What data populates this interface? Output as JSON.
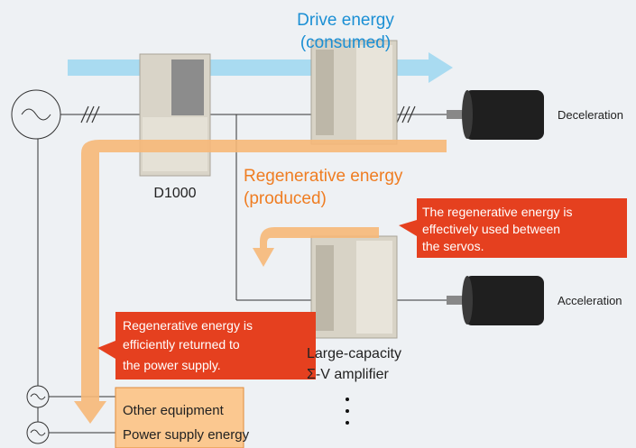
{
  "drive_energy": {
    "lines": [
      "Drive energy",
      "(consumed)"
    ]
  },
  "regenerative_energy": {
    "lines": [
      "Regenerative energy",
      "(produced)"
    ]
  },
  "inverter": {
    "label": "D1000"
  },
  "motors": {
    "top": "Deceleration",
    "bottom": "Acceleration"
  },
  "amplifier": {
    "lines": [
      "Large-capacity",
      "Σ-V amplifier"
    ]
  },
  "callouts": [
    {
      "lines": [
        "The regenerative energy is",
        "effectively used between",
        "the servos."
      ]
    },
    {
      "lines": [
        "Regenerative energy is",
        "efficiently returned to",
        "the power supply."
      ]
    }
  ],
  "equipment_box": {
    "lines": [
      "Other equipment",
      "Power supply energy"
    ]
  }
}
